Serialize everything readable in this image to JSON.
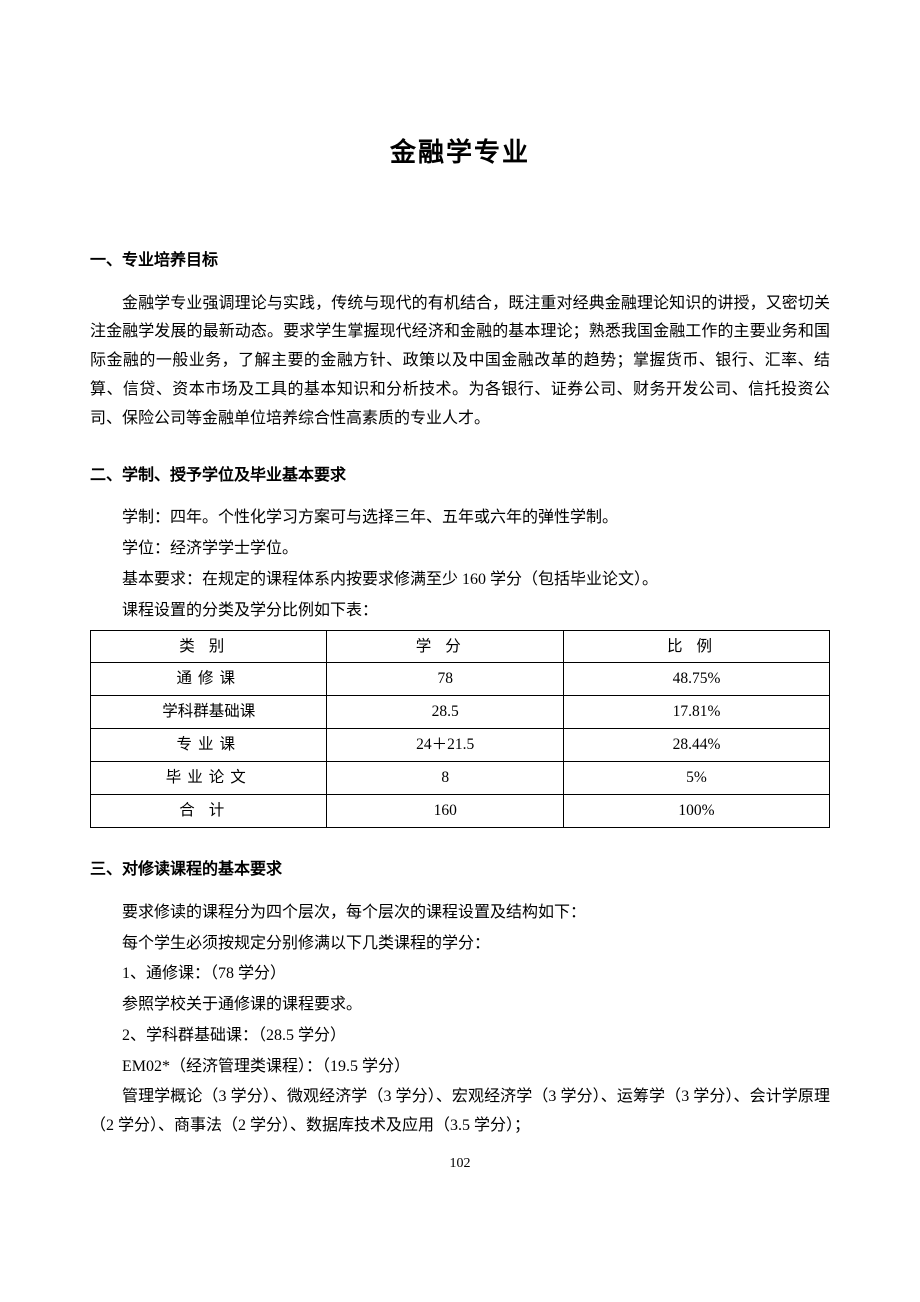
{
  "title": "金融学专业",
  "section1": {
    "heading": "一、专业培养目标",
    "body": "金融学专业强调理论与实践，传统与现代的有机结合，既注重对经典金融理论知识的讲授，又密切关注金融学发展的最新动态。要求学生掌握现代经济和金融的基本理论；熟悉我国金融工作的主要业务和国际金融的一般业务，了解主要的金融方针、政策以及中国金融改革的趋势；掌握货币、银行、汇率、结算、信贷、资本市场及工具的基本知识和分析技术。为各银行、证券公司、财务开发公司、信托投资公司、保险公司等金融单位培养综合性高素质的专业人才。"
  },
  "section2": {
    "heading": "二、学制、授予学位及毕业基本要求",
    "line1": "学制：四年。个性化学习方案可与选择三年、五年或六年的弹性学制。",
    "line2": "学位：经济学学士学位。",
    "line3": "基本要求：在规定的课程体系内按要求修满至少 160 学分（包括毕业论文）。",
    "line4": "课程设置的分类及学分比例如下表：",
    "table": {
      "header": {
        "c1": "类别",
        "c2": "学分",
        "c3": "比例"
      },
      "rows": [
        {
          "c1": "通修课",
          "c2": "78",
          "c3": "48.75%"
        },
        {
          "c1": "学科群基础课",
          "c2": "28.5",
          "c3": "17.81%"
        },
        {
          "c1": "专业课",
          "c2": "24＋21.5",
          "c3": "28.44%"
        },
        {
          "c1": "毕业论文",
          "c2": "8",
          "c3": "5%"
        },
        {
          "c1": "合计",
          "c2": "160",
          "c3": "100%"
        }
      ]
    }
  },
  "section3": {
    "heading": "三、对修读课程的基本要求",
    "line1": "要求修读的课程分为四个层次，每个层次的课程设置及结构如下：",
    "line2": "每个学生必须按规定分别修满以下几类课程的学分：",
    "line3": "1、通修课：（78 学分）",
    "line4": "参照学校关于通修课的课程要求。",
    "line5": "2、学科群基础课：（28.5 学分）",
    "line6": "EM02*（经济管理类课程）：（19.5 学分）",
    "line7": "管理学概论（3 学分）、微观经济学（3 学分）、宏观经济学（3 学分）、运筹学（3 学分）、会计学原理（2 学分）、商事法（2 学分）、数据库技术及应用（3.5 学分）；"
  },
  "pageNumber": "102"
}
